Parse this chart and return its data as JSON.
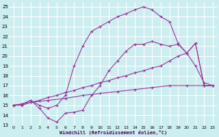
{
  "background_color": "#cceef0",
  "grid_color": "#ffffff",
  "line_color": "#993399",
  "marker": "+",
  "xlabel": "Windchill (Refroidissement éolien,°C)",
  "xlim": [
    -0.5,
    23.5
  ],
  "ylim": [
    13,
    25.5
  ],
  "xticks": [
    0,
    1,
    2,
    3,
    4,
    5,
    6,
    7,
    8,
    9,
    10,
    11,
    12,
    13,
    14,
    15,
    16,
    17,
    18,
    19,
    20,
    21,
    22,
    23
  ],
  "yticks": [
    13,
    14,
    15,
    16,
    17,
    18,
    19,
    20,
    21,
    22,
    23,
    24,
    25
  ],
  "series": [
    {
      "x": [
        0,
        1,
        2,
        3,
        4,
        5,
        6,
        7,
        8,
        9,
        10,
        11,
        12,
        13,
        14,
        15,
        16,
        17,
        18,
        19,
        20,
        21,
        22,
        23
      ],
      "y": [
        15,
        15.1,
        15.5,
        15.0,
        14.7,
        15.0,
        16.0,
        19.0,
        21.0,
        22.5,
        23.0,
        23.5,
        24.0,
        24.3,
        24.7,
        25.0,
        24.7,
        24.0,
        23.5,
        21.3,
        20.3,
        21.3,
        17.0,
        17.0
      ]
    },
    {
      "x": [
        0,
        1,
        2,
        3,
        4,
        5,
        6,
        7,
        8,
        9,
        10,
        11,
        12,
        13,
        14,
        15,
        16,
        17,
        18,
        19,
        20,
        21,
        22,
        23
      ],
      "y": [
        15,
        15.1,
        15.5,
        14.7,
        13.7,
        13.3,
        14.2,
        14.3,
        14.5,
        16.0,
        17.0,
        18.5,
        19.5,
        20.5,
        21.2,
        21.2,
        21.5,
        21.2,
        21.0,
        21.2,
        20.3,
        21.3,
        17.0,
        17.0
      ]
    },
    {
      "x": [
        0,
        1,
        2,
        3,
        4,
        5,
        6,
        7,
        8,
        9,
        10,
        11,
        12,
        13,
        14,
        15,
        16,
        17,
        18,
        19,
        20,
        21,
        22,
        23
      ],
      "y": [
        15,
        15.0,
        15.3,
        15.5,
        15.8,
        16.0,
        16.3,
        16.5,
        16.8,
        17.0,
        17.3,
        17.5,
        17.8,
        18.0,
        18.3,
        18.5,
        18.8,
        19.0,
        19.5,
        20.0,
        20.3,
        19.0,
        17.3,
        17.0
      ]
    },
    {
      "x": [
        0,
        2,
        4,
        6,
        8,
        10,
        12,
        14,
        16,
        18,
        20,
        22,
        23
      ],
      "y": [
        15,
        15.3,
        15.5,
        15.7,
        16.0,
        16.2,
        16.4,
        16.6,
        16.8,
        17.0,
        17.0,
        17.0,
        17.0
      ]
    }
  ]
}
